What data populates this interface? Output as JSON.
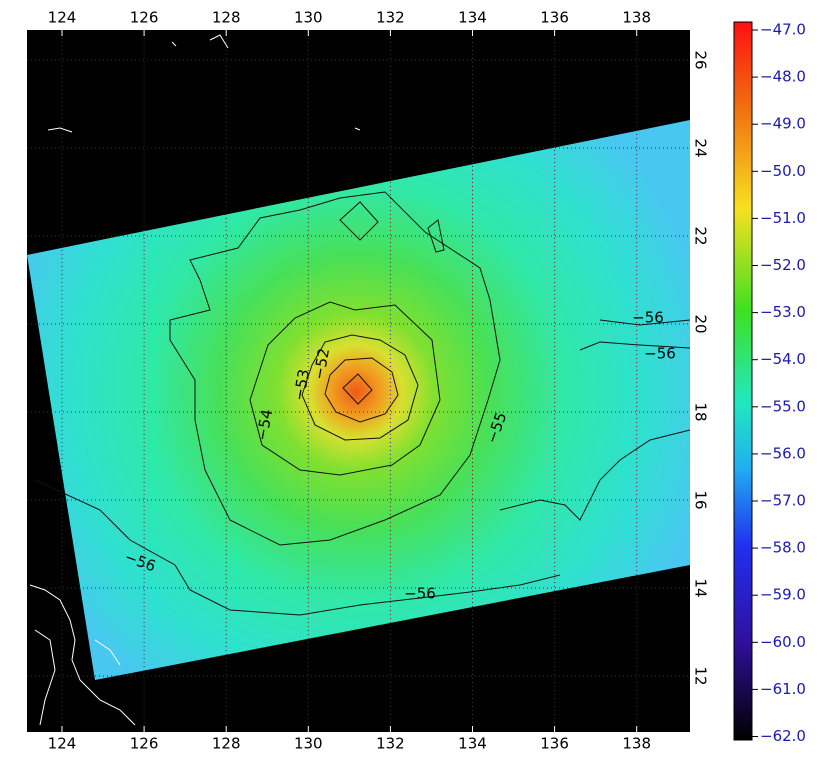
{
  "map": {
    "lon_ticks": [
      "124",
      "126",
      "128",
      "130",
      "132",
      "134",
      "136",
      "138"
    ],
    "lat_ticks": [
      "26",
      "24",
      "22",
      "20",
      "18",
      "16",
      "14",
      "12"
    ],
    "colorbar": {
      "ticks": [
        "−47.0",
        "−48.0",
        "−49.0",
        "−50.0",
        "−51.0",
        "−52.0",
        "−53.0",
        "−54.0",
        "−55.0",
        "−56.0",
        "−57.0",
        "−58.0",
        "−59.0",
        "−60.0",
        "−61.0",
        "−62.0"
      ]
    },
    "contour_labels": [
      "−56",
      "−56",
      "−52",
      "−53",
      "−54",
      "−55",
      "−56",
      "−56"
    ]
  }
}
